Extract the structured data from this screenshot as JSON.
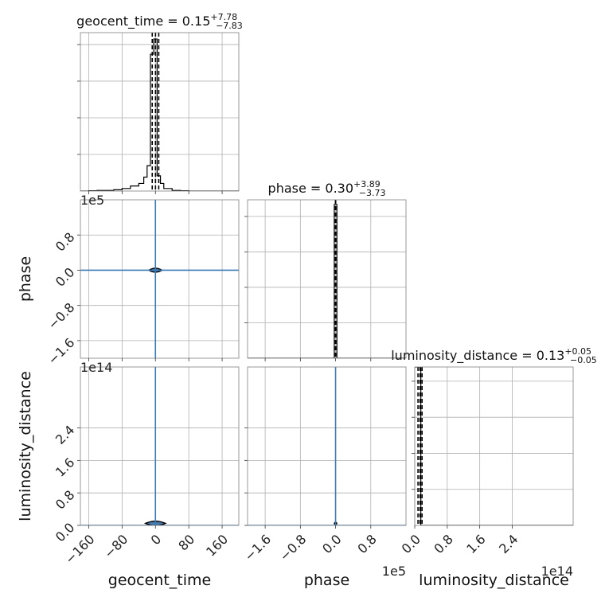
{
  "chart_data": {
    "type": "corner",
    "parameters": [
      "geocent_time",
      "phase",
      "luminosity_distance"
    ],
    "titles": [
      {
        "param": "geocent_time",
        "prefix": "geocent_time = ",
        "median": "0.15",
        "plus": "+7.78",
        "minus": "−7.83"
      },
      {
        "param": "phase",
        "prefix": "phase = ",
        "median": "0.30",
        "plus": "+3.89",
        "minus": "−3.73"
      },
      {
        "param": "luminosity_distance",
        "prefix": "luminosity_distance = ",
        "median": "0.13",
        "plus": "+0.05",
        "minus": "−0.05"
      }
    ],
    "axes": {
      "geocent_time": {
        "range": [
          -180,
          200
        ],
        "ticks": [
          -160,
          -80,
          0,
          80,
          160
        ],
        "tick_labels": [
          "−160",
          "−80",
          "0",
          "80",
          "160"
        ],
        "offset": ""
      },
      "phase": {
        "range": [
          -200000,
          160000
        ],
        "ticks": [
          -160000,
          -80000,
          0,
          80000
        ],
        "tick_labels": [
          "−1.6",
          "−0.8",
          "0.0",
          "0.8"
        ],
        "offset": "1e5"
      },
      "luminosity_distance": {
        "range": [
          0,
          390000000000000.0
        ],
        "ticks": [
          0,
          80000000000000.0,
          160000000000000.0,
          240000000000000.0
        ],
        "tick_labels": [
          "0.0",
          "0.8",
          "1.6",
          "2.4"
        ],
        "offset": "1e14"
      }
    },
    "marginals": [
      {
        "param": "geocent_time",
        "bin_edges": [
          -180,
          -160,
          -140,
          -120,
          -100,
          -80,
          -60,
          -40,
          -28,
          -20,
          -12,
          -4,
          4,
          12,
          20,
          40,
          60,
          80,
          100,
          120,
          140,
          160,
          180,
          200
        ],
        "counts": [
          0,
          0.5,
          1,
          1,
          2,
          4,
          8,
          12,
          22,
          40,
          216,
          240,
          24,
          12,
          4,
          1,
          0.5,
          0,
          0,
          0,
          0,
          0,
          0
        ],
        "quantiles": [
          -7.68,
          0.15,
          7.93
        ],
        "ylim": [
          0,
          250
        ]
      },
      {
        "param": "phase",
        "bin_edges": [
          -200000,
          -3000,
          3000,
          160000
        ],
        "counts": [
          0,
          100,
          0
        ],
        "quantiles": [
          -3.43,
          0.3,
          4.19
        ],
        "ylim": [
          0,
          103
        ]
      },
      {
        "param": "luminosity_distance",
        "bin_edges": [
          0,
          15000000000000.0,
          390000000000000.0
        ],
        "counts": [
          100,
          0
        ],
        "quantiles": [
          8000000000000.0,
          13000000000000.0,
          18000000000000.0
        ],
        "ylim": [
          0,
          100
        ]
      }
    ],
    "truths": {
      "geocent_time": 0,
      "phase": 0,
      "luminosity_distance": 0
    },
    "pairs": [
      {
        "x": "geocent_time",
        "y": "phase",
        "center": [
          0,
          0
        ],
        "spread": [
          16,
          9000
        ]
      },
      {
        "x": "geocent_time",
        "y": "luminosity_distance",
        "center": [
          0,
          5000000000000.0
        ],
        "spread": [
          24,
          11000000000000.0
        ]
      },
      {
        "x": "phase",
        "y": "luminosity_distance",
        "center": [
          0,
          5000000000000.0
        ],
        "spread": [
          3000,
          6000000000000.0
        ]
      }
    ],
    "grid": true
  }
}
